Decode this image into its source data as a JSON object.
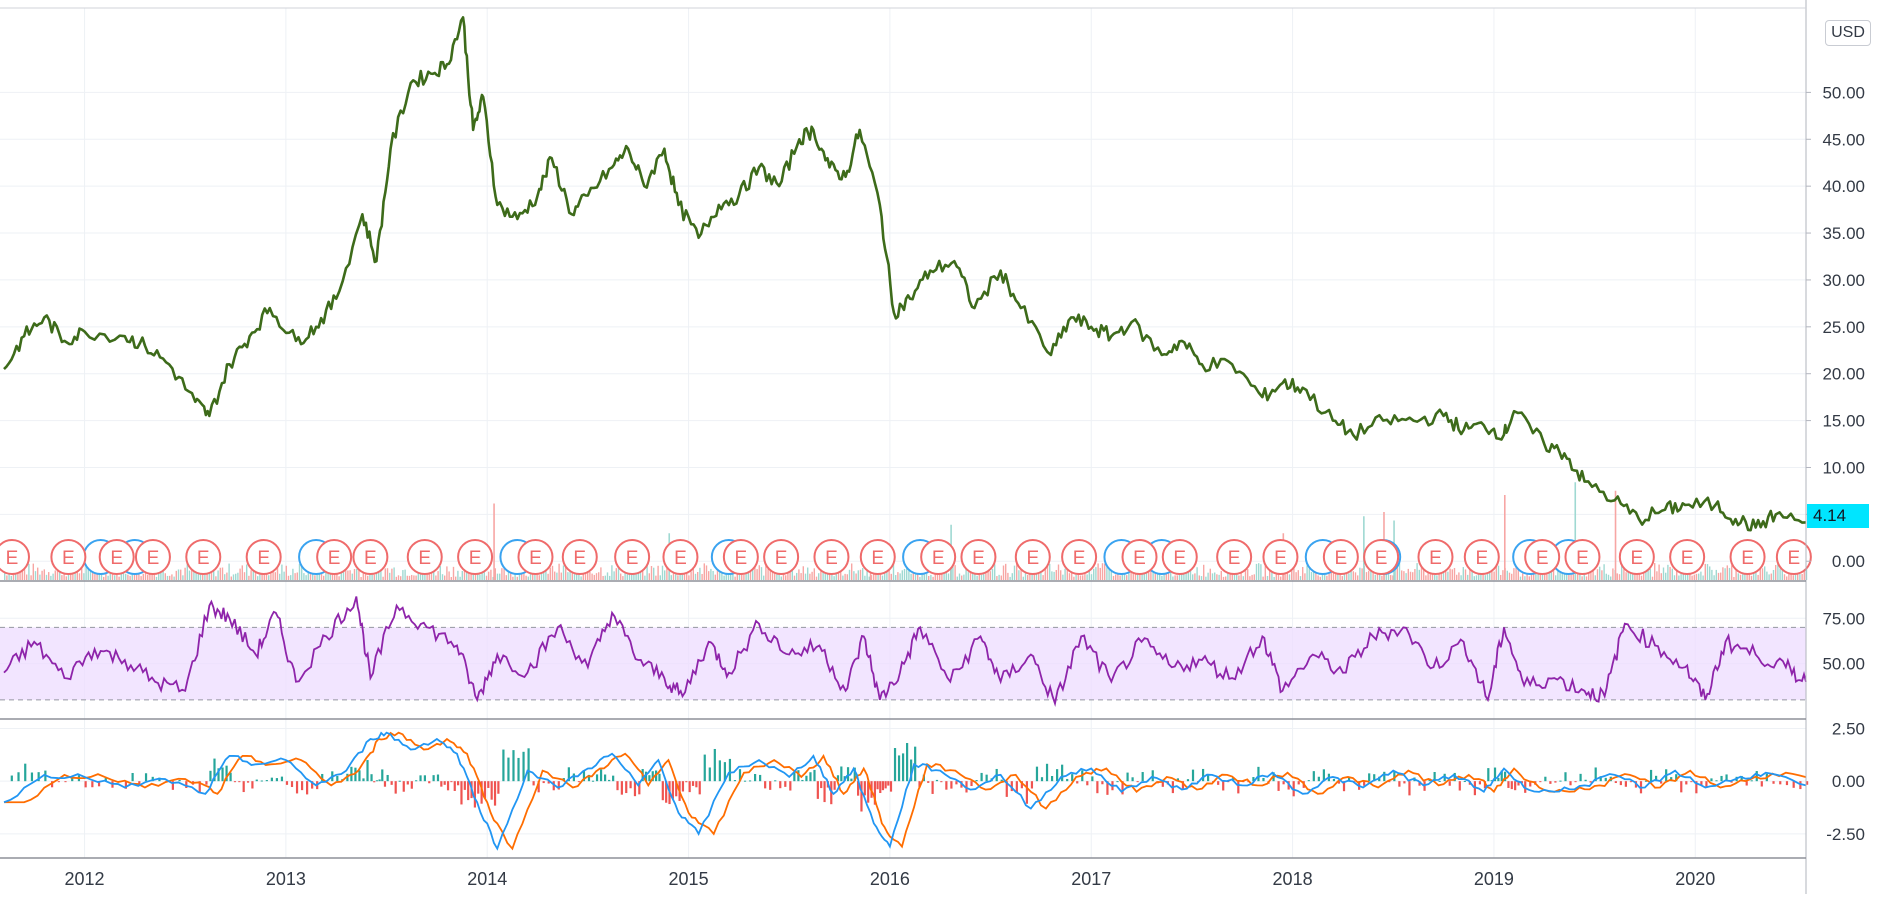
{
  "currency_label": "USD",
  "last_price_label": "4.14",
  "colors": {
    "price_line": "#3d6b1a",
    "rsi_line": "#8e24aa",
    "rsi_band": "#eedcff",
    "macd_line": "#2196f3",
    "signal_line": "#ff6d00",
    "hist_up": "#26a69a",
    "hist_down": "#ef5350",
    "volume_up": "#9fd9d2",
    "volume_down": "#f7a6a4",
    "earnings_marker": "#ef6b6b",
    "dividend_marker": "#3aa3f0",
    "last_price_bg": "#00e5ff",
    "grid": "#eef1f5"
  },
  "icons": {
    "earnings": "E",
    "dividend": "circle-icon"
  },
  "chart_data": [
    {
      "type": "line",
      "pane": "price",
      "x_range": [
        2011.6,
        2020.55
      ],
      "ylim": [
        -2,
        59
      ],
      "y_ticks": [
        "0.00",
        "5.00",
        "10.00",
        "15.00",
        "20.00",
        "25.00",
        "30.00",
        "35.00",
        "40.00",
        "45.00",
        "50.00"
      ],
      "y_tick_values": [
        0,
        5,
        10,
        15,
        20,
        25,
        30,
        35,
        40,
        45,
        50
      ],
      "x_ticks": [
        "2012",
        "2013",
        "2014",
        "2015",
        "2016",
        "2017",
        "2018",
        "2019",
        "2020"
      ],
      "x_tick_values": [
        2012,
        2013,
        2014,
        2015,
        2016,
        2017,
        2018,
        2019,
        2020
      ],
      "last_value": 4.14,
      "x": [
        2011.6,
        2011.7,
        2011.8,
        2011.9,
        2012.0,
        2012.2,
        2012.3,
        2012.42,
        2012.55,
        2012.62,
        2012.72,
        2012.82,
        2012.92,
        2013.05,
        2013.15,
        2013.25,
        2013.38,
        2013.45,
        2013.52,
        2013.62,
        2013.72,
        2013.8,
        2013.88,
        2013.93,
        2013.98,
        2014.05,
        2014.15,
        2014.25,
        2014.32,
        2014.42,
        2014.5,
        2014.62,
        2014.7,
        2014.78,
        2014.88,
        2014.95,
        2015.05,
        2015.15,
        2015.25,
        2015.35,
        2015.45,
        2015.55,
        2015.62,
        2015.7,
        2015.78,
        2015.85,
        2015.95,
        2016.02,
        2016.1,
        2016.2,
        2016.32,
        2016.42,
        2016.55,
        2016.65,
        2016.8,
        2016.9,
        2017.0,
        2017.1,
        2017.2,
        2017.35,
        2017.45,
        2017.55,
        2017.7,
        2017.85,
        2017.95,
        2018.05,
        2018.2,
        2018.3,
        2018.45,
        2018.6,
        2018.75,
        2018.85,
        2018.95,
        2019.05,
        2019.1,
        2019.25,
        2019.35,
        2019.45,
        2019.6,
        2019.72,
        2019.85,
        2019.95,
        2020.1,
        2020.2,
        2020.3,
        2020.4,
        2020.55
      ],
      "y": [
        20.5,
        24,
        26,
        23.5,
        24.5,
        24,
        23,
        21,
        17,
        15.5,
        21,
        24,
        27,
        23.5,
        25,
        28,
        37,
        32,
        44,
        51,
        52,
        53,
        58,
        46,
        49.5,
        38,
        36.5,
        39,
        43,
        37,
        39,
        42,
        44,
        40,
        44,
        38,
        34.5,
        38,
        39,
        42,
        40,
        45,
        46,
        42,
        41,
        46,
        38,
        26.5,
        28,
        31,
        32,
        27,
        31,
        27,
        22,
        26,
        25,
        24,
        25.5,
        22,
        23.5,
        21,
        21,
        17.5,
        19,
        18.5,
        15,
        13.5,
        15,
        15,
        15.5,
        14,
        14.5,
        13.5,
        16,
        12.5,
        11.5,
        8.5,
        6.5,
        4.5,
        5.5,
        6,
        6,
        4.5,
        3.6,
        5,
        4.14
      ]
    },
    {
      "type": "bar",
      "pane": "volume",
      "note_values": "relative volume bars at bottom of price pane",
      "spikes_x": [
        2014.03,
        2014.9,
        2015.9,
        2016.3,
        2017.95,
        2018.35,
        2018.45,
        2018.5,
        2019.05,
        2019.4,
        2019.6
      ],
      "spikes_v": [
        0.9,
        0.55,
        0.45,
        0.65,
        0.55,
        0.75,
        0.8,
        0.7,
        1.0,
        1.15,
        1.05
      ]
    },
    {
      "type": "scatter",
      "pane": "events",
      "label": "E",
      "earnings_x": [
        2011.6,
        2011.88,
        2012.12,
        2012.3,
        2012.55,
        2012.85,
        2013.2,
        2013.38,
        2013.65,
        2013.9,
        2014.2,
        2014.42,
        2014.68,
        2014.92,
        2015.22,
        2015.42,
        2015.67,
        2015.9,
        2016.2,
        2016.4,
        2016.67,
        2016.9,
        2017.2,
        2017.4,
        2017.67,
        2017.9,
        2018.2,
        2018.4,
        2018.67,
        2018.9,
        2019.2,
        2019.4,
        2019.67,
        2019.92,
        2020.22,
        2020.45
      ],
      "dividend_x": [
        2012.08,
        2012.25,
        2013.15,
        2014.15,
        2015.2,
        2016.15,
        2017.15,
        2017.35,
        2018.15,
        2018.45,
        2019.18,
        2019.37
      ]
    },
    {
      "type": "line",
      "pane": "rsi",
      "ylim": [
        20,
        95
      ],
      "band": [
        30,
        70
      ],
      "y_ticks": [
        "50.00",
        "75.00"
      ],
      "y_tick_values": [
        50,
        75
      ],
      "x": [
        2011.6,
        2011.75,
        2011.9,
        2012.05,
        2012.2,
        2012.35,
        2012.5,
        2012.62,
        2012.72,
        2012.85,
        2012.95,
        2013.05,
        2013.2,
        2013.35,
        2013.42,
        2013.55,
        2013.7,
        2013.85,
        2013.95,
        2014.05,
        2014.2,
        2014.35,
        2014.5,
        2014.62,
        2014.75,
        2014.88,
        2014.97,
        2015.1,
        2015.2,
        2015.35,
        2015.5,
        2015.65,
        2015.78,
        2015.87,
        2015.95,
        2016.05,
        2016.15,
        2016.3,
        2016.45,
        2016.55,
        2016.7,
        2016.82,
        2016.95,
        2017.1,
        2017.25,
        2017.4,
        2017.55,
        2017.7,
        2017.85,
        2017.95,
        2018.1,
        2018.25,
        2018.4,
        2018.55,
        2018.7,
        2018.85,
        2018.97,
        2019.05,
        2019.15,
        2019.3,
        2019.45,
        2019.55,
        2019.65,
        2019.8,
        2019.95,
        2020.05,
        2020.15,
        2020.3,
        2020.45,
        2020.55
      ],
      "y": [
        45,
        62,
        42,
        58,
        52,
        40,
        35,
        82,
        75,
        55,
        78,
        40,
        65,
        87,
        42,
        82,
        70,
        60,
        30,
        55,
        45,
        70,
        48,
        78,
        52,
        42,
        32,
        62,
        45,
        72,
        55,
        60,
        35,
        65,
        30,
        45,
        70,
        40,
        65,
        40,
        55,
        28,
        65,
        40,
        62,
        48,
        52,
        42,
        65,
        35,
        55,
        45,
        65,
        70,
        48,
        62,
        30,
        70,
        38,
        42,
        35,
        32,
        72,
        60,
        48,
        30,
        62,
        55,
        48,
        40
      ]
    },
    {
      "type": "line",
      "pane": "macd",
      "ylim": [
        -3.5,
        2.9
      ],
      "y_ticks": [
        "-2.50",
        "0.00",
        "2.50"
      ],
      "y_tick_values": [
        -2.5,
        0,
        2.5
      ],
      "series": [
        {
          "x": [
            2011.6,
            2011.8,
            2012.0,
            2012.2,
            2012.4,
            2012.6,
            2012.72,
            2012.85,
            2013.0,
            2013.15,
            2013.3,
            2013.42,
            2013.5,
            2013.62,
            2013.75,
            2013.85,
            2013.95,
            2014.05,
            2014.2,
            2014.35,
            2014.5,
            2014.62,
            2014.75,
            2014.85,
            2014.95,
            2015.05,
            2015.2,
            2015.35,
            2015.5,
            2015.62,
            2015.72,
            2015.82,
            2015.92,
            2016.0,
            2016.12,
            2016.25,
            2016.4,
            2016.55,
            2016.7,
            2016.85,
            2017.0,
            2017.15,
            2017.3,
            2017.45,
            2017.6,
            2017.75,
            2017.9,
            2018.05,
            2018.2,
            2018.35,
            2018.5,
            2018.65,
            2018.8,
            2018.95,
            2019.05,
            2019.15,
            2019.3,
            2019.45,
            2019.6,
            2019.75,
            2019.9,
            2020.05,
            2020.2,
            2020.35,
            2020.55
          ],
          "y": [
            -1.0,
            0.3,
            0.2,
            -0.3,
            0.1,
            -0.6,
            1.2,
            0.8,
            1.0,
            -0.2,
            0.5,
            2.0,
            2.3,
            1.5,
            2.0,
            1.3,
            -1.0,
            -3.2,
            0.5,
            -0.3,
            0.6,
            1.3,
            -0.2,
            1.0,
            -1.5,
            -2.5,
            0.4,
            1.0,
            0.2,
            1.2,
            -0.6,
            0.6,
            -2.0,
            -3.1,
            0.8,
            0.5,
            -0.4,
            0.3,
            -1.3,
            0.2,
            0.6,
            -0.5,
            0.2,
            -0.4,
            0.3,
            -0.2,
            0.4,
            -0.6,
            0.2,
            -0.3,
            0.5,
            -0.2,
            0.3,
            -0.5,
            0.6,
            -0.3,
            -0.5,
            -0.2,
            0.3,
            -0.3,
            0.5,
            -0.3,
            0.1,
            0.4,
            -0.2
          ]
        }
      ]
    }
  ]
}
